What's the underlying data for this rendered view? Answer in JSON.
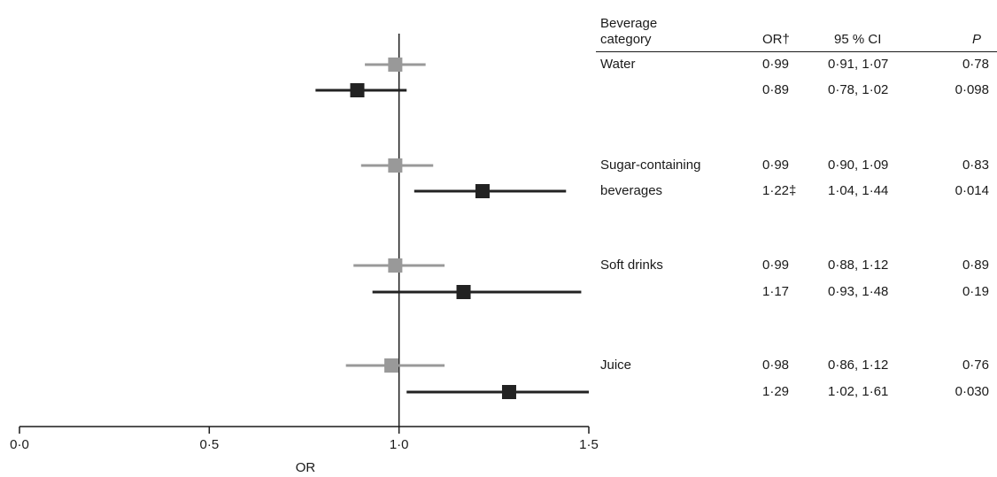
{
  "chart_data": {
    "type": "forest",
    "xlabel": "OR",
    "xlim": [
      0.0,
      1.5
    ],
    "x_ticks": [
      "0·0",
      "0·5",
      "1·0",
      "1·5"
    ],
    "x_tick_values": [
      0.0,
      0.5,
      1.0,
      1.5
    ],
    "reference_line": 1.0,
    "series_colors": [
      "#999999",
      "#222222"
    ],
    "table_headers": {
      "category": "Beverage\ncategory",
      "or": "OR†",
      "ci": "95 % CI",
      "p": "P"
    },
    "groups": [
      {
        "label": "Water",
        "estimates": [
          {
            "or": 0.99,
            "lower": 0.91,
            "upper": 1.07,
            "or_text": "0·99",
            "ci_text": "0·91, 1·07",
            "p_text": "0·78"
          },
          {
            "or": 0.89,
            "lower": 0.78,
            "upper": 1.02,
            "or_text": "0·89",
            "ci_text": "0·78, 1·02",
            "p_text": "0·098"
          }
        ]
      },
      {
        "label": "Sugar-containing\nbeverages",
        "estimates": [
          {
            "or": 0.99,
            "lower": 0.9,
            "upper": 1.09,
            "or_text": "0·99",
            "ci_text": "0·90, 1·09",
            "p_text": "0·83"
          },
          {
            "or": 1.22,
            "lower": 1.04,
            "upper": 1.44,
            "or_text": "1·22‡",
            "ci_text": "1·04, 1·44",
            "p_text": "0·014"
          }
        ]
      },
      {
        "label": "Soft drinks",
        "estimates": [
          {
            "or": 0.99,
            "lower": 0.88,
            "upper": 1.12,
            "or_text": "0·99",
            "ci_text": "0·88, 1·12",
            "p_text": "0·89"
          },
          {
            "or": 1.17,
            "lower": 0.93,
            "upper": 1.48,
            "or_text": "1·17",
            "ci_text": "0·93, 1·48",
            "p_text": "0·19"
          }
        ]
      },
      {
        "label": "Juice",
        "estimates": [
          {
            "or": 0.98,
            "lower": 0.86,
            "upper": 1.12,
            "or_text": "0·98",
            "ci_text": "0·86, 1·12",
            "p_text": "0·76"
          },
          {
            "or": 1.29,
            "lower": 1.02,
            "upper": 1.61,
            "or_text": "1·29",
            "ci_text": "1·02, 1·61",
            "p_text": "0·030"
          }
        ]
      }
    ]
  }
}
